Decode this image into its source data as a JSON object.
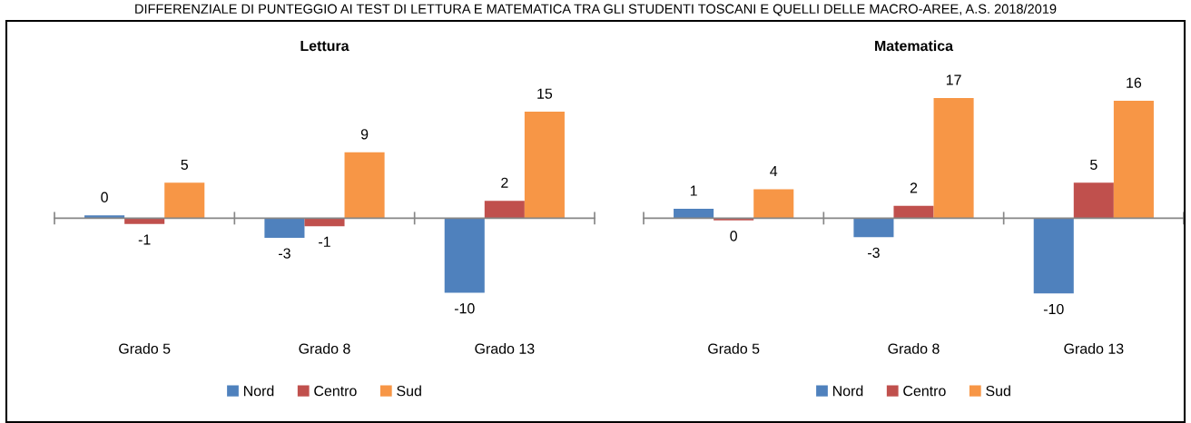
{
  "chart_data": [
    {
      "type": "bar",
      "title": "Lettura",
      "annotations": [
        "DIFFERENZIALE DI PUNTEGGIO AI TEST DI LETTURA E MATEMATICA TRA GLI STUDENTI TOSCANI E QUELLI DELLE MACRO-AREE, A.S. 2018/2019"
      ],
      "categories": [
        "Grado 5",
        "Grado 8",
        "Grado 13"
      ],
      "series": [
        {
          "name": "Nord",
          "color": "#4f81bd",
          "values": [
            0.4,
            -2.7,
            -10.3
          ],
          "value_labels": [
            "0",
            "-3",
            "-10"
          ]
        },
        {
          "name": "Centro",
          "color": "#c0504d",
          "values": [
            -0.8,
            -1.1,
            2.4
          ],
          "value_labels": [
            "-1",
            "-1",
            "2"
          ]
        },
        {
          "name": "Sud",
          "color": "#f79646",
          "values": [
            4.9,
            9.1,
            14.7
          ],
          "value_labels": [
            "5",
            "9",
            "15"
          ]
        }
      ],
      "tick_labels": "x",
      "legend": "bottom"
    },
    {
      "type": "bar",
      "title": "Matematica",
      "categories": [
        "Grado 5",
        "Grado 8",
        "Grado 13"
      ],
      "series": [
        {
          "name": "Nord",
          "color": "#4f81bd",
          "values": [
            1.3,
            -2.6,
            -10.4
          ],
          "value_labels": [
            "1",
            "-3",
            "-10"
          ]
        },
        {
          "name": "Centro",
          "color": "#c0504d",
          "values": [
            -0.3,
            1.7,
            4.9
          ],
          "value_labels": [
            "0",
            "2",
            "5"
          ]
        },
        {
          "name": "Sud",
          "color": "#f79646",
          "values": [
            4.0,
            16.6,
            16.2
          ],
          "value_labels": [
            "4",
            "17",
            "16"
          ]
        }
      ],
      "tick_labels": "x",
      "legend": "bottom"
    }
  ]
}
